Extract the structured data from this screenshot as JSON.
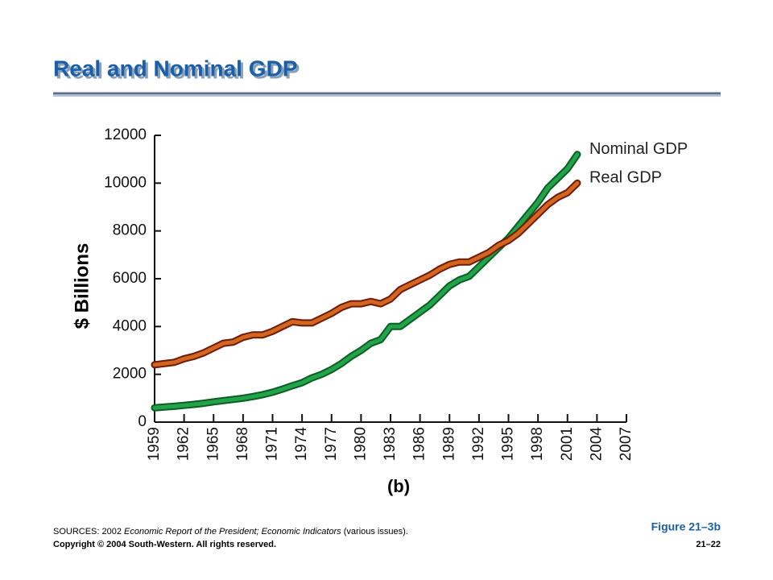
{
  "slide": {
    "title": "Real and Nominal GDP"
  },
  "chart_data": {
    "type": "line",
    "y_label": "$ Billions",
    "caption": "(b)",
    "x": [
      1959,
      1960,
      1961,
      1962,
      1963,
      1964,
      1965,
      1966,
      1967,
      1968,
      1969,
      1970,
      1971,
      1972,
      1973,
      1974,
      1975,
      1976,
      1977,
      1978,
      1979,
      1980,
      1981,
      1982,
      1983,
      1984,
      1985,
      1986,
      1987,
      1988,
      1989,
      1990,
      1991,
      1992,
      1993,
      1994,
      1995,
      1996,
      1997,
      1998,
      1999,
      2000,
      2001,
      2002
    ],
    "series": [
      {
        "name": "Nominal GDP",
        "color": "#22a34a",
        "outline": "#0b5e25",
        "values": [
          600,
          630,
          660,
          700,
          740,
          790,
          850,
          900,
          950,
          1000,
          1070,
          1150,
          1250,
          1380,
          1520,
          1650,
          1850,
          2000,
          2200,
          2450,
          2750,
          3000,
          3300,
          3450,
          4000,
          4000,
          4300,
          4600,
          4900,
          5300,
          5700,
          5950,
          6100,
          6500,
          6900,
          7300,
          7700,
          8200,
          8700,
          9200,
          9800,
          10200,
          10600,
          11200
        ]
      },
      {
        "name": "Real GDP",
        "color": "#d2661e",
        "outline": "#6e1a0c",
        "values": [
          2400,
          2450,
          2500,
          2650,
          2750,
          2900,
          3100,
          3300,
          3350,
          3550,
          3650,
          3650,
          3800,
          4000,
          4200,
          4150,
          4150,
          4350,
          4550,
          4800,
          4950,
          4950,
          5050,
          4950,
          5150,
          5550,
          5750,
          5950,
          6150,
          6400,
          6600,
          6700,
          6700,
          6900,
          7100,
          7400,
          7600,
          7900,
          8300,
          8700,
          9100,
          9400,
          9600,
          10000
        ]
      }
    ],
    "xlim": [
      1959,
      2007
    ],
    "xticks": [
      1959,
      1962,
      1965,
      1968,
      1971,
      1974,
      1977,
      1980,
      1983,
      1986,
      1989,
      1992,
      1995,
      1998,
      2001,
      2004,
      2007
    ],
    "ylim": [
      0,
      12000
    ],
    "yticks": [
      0,
      2000,
      4000,
      6000,
      8000,
      10000,
      12000
    ],
    "grid": false
  },
  "footer": {
    "figure": "Figure 21–3b",
    "sources": [
      "SOURCES: 2002 ",
      "Economic Report of the President; Economic Indicators",
      " (various issues)."
    ],
    "copyright": "Copyright © 2004 South-Western.  All rights reserved.",
    "page": "21–22"
  }
}
